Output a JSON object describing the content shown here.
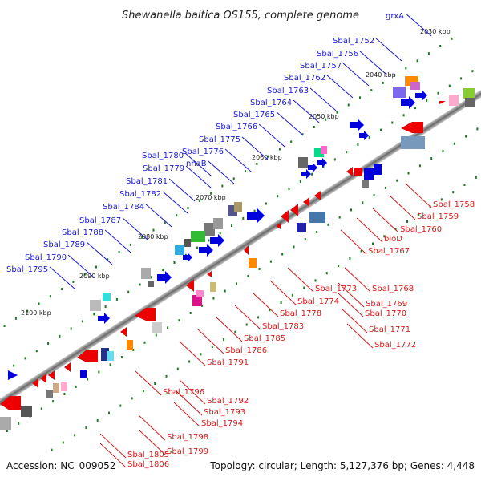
{
  "title": "Shewanella baltica OS155, complete genome",
  "footer": {
    "accession": "Accession: NC_009052",
    "summary": "Topology: circular; Length: 5,127,376 bp; Genes: 4,448"
  },
  "kbp_ticks": [
    "2030 kbp",
    "2040 kbp",
    "2050 kbp",
    "2060 kbp",
    "2070 kbp",
    "2080 kbp",
    "2090 kbp",
    "2100 kbp"
  ],
  "genes_top": [
    "grxA",
    "Sbal_1752",
    "Sbal_1756",
    "Sbal_1757",
    "Sbal_1762",
    "Sbal_1763",
    "Sbal_1764",
    "Sbal_1765",
    "Sbal_1766",
    "Sbal_1775",
    "Sbal_1776",
    "nhaB",
    "Sbal_1780",
    "Sbal_1779",
    "Sbal_1781",
    "Sbal_1782",
    "Sbal_1784",
    "Sbal_1787",
    "Sbal_1788",
    "Sbal_1789",
    "Sbal_1790",
    "Sbal_1795"
  ],
  "genes_bottom": [
    "Sbal_1758",
    "Sbal_1759",
    "Sbal_1760",
    "bioD",
    "Sbal_1767",
    "Sbal_1768",
    "Sbal_1769",
    "Sbal_1770",
    "Sbal_1771",
    "Sbal_1772",
    "Sbal_1773",
    "Sbal_1774",
    "Sbal_1778",
    "Sbal_1783",
    "Sbal_1785",
    "Sbal_1786",
    "Sbal_1791",
    "Sbal_1792",
    "Sbal_1793",
    "Sbal_1794",
    "Sbal_1796",
    "Sbal_1798",
    "Sbal_1799",
    "Sbal_1805",
    "Sbal_1806"
  ],
  "colors": {
    "forward": "#0000dd",
    "reverse": "#ee0000",
    "label_top": "#1a1ad6",
    "label_bottom": "#d61a1a",
    "backbone": "#8a8a8a",
    "tick": "#1b7a1b"
  }
}
